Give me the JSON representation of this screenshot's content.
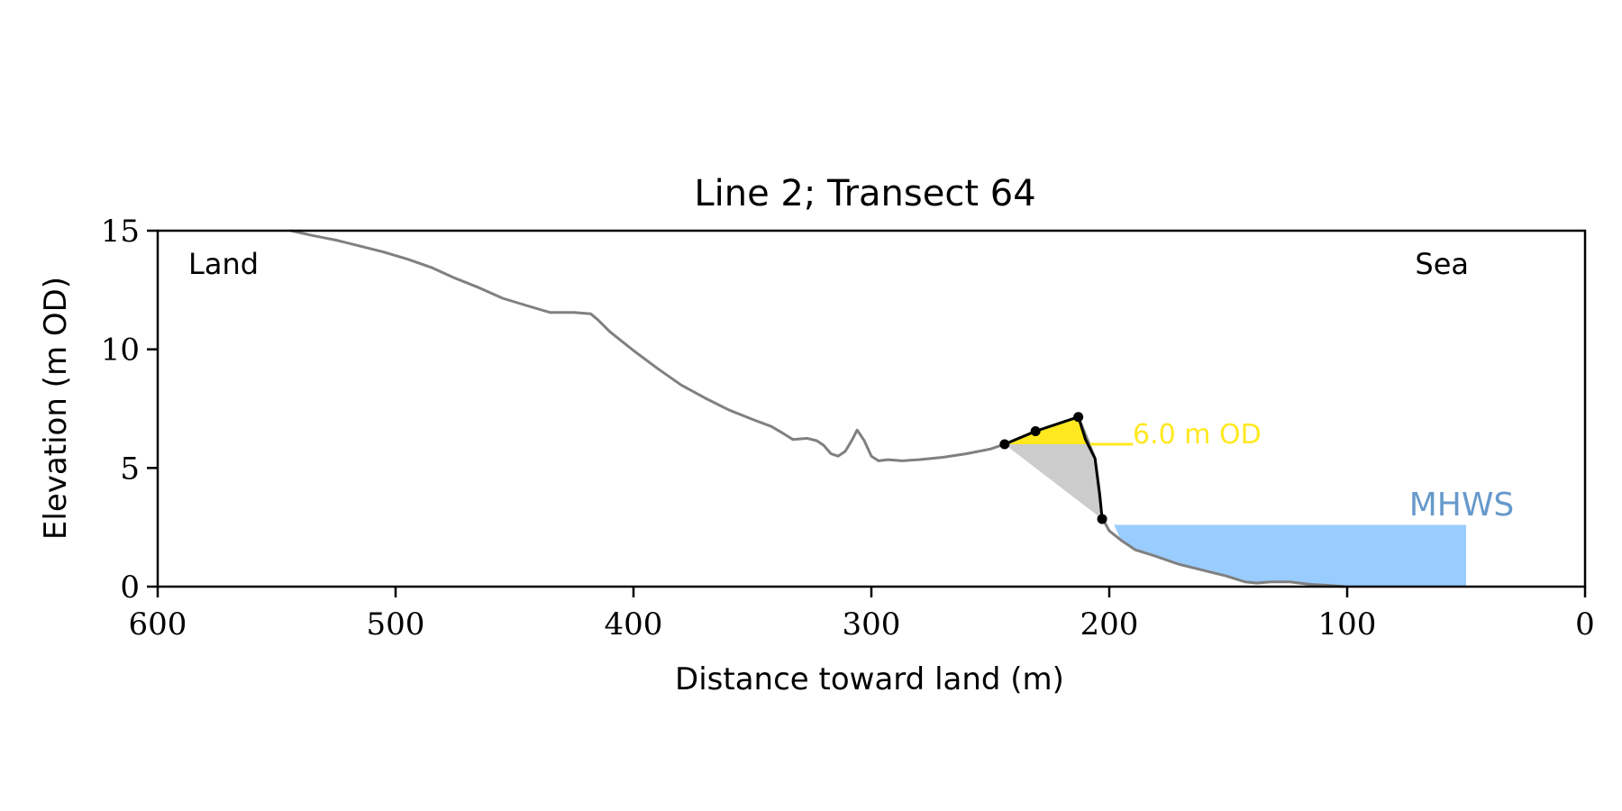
{
  "chart_data": {
    "type": "line",
    "title": "Line 2; Transect 64",
    "xlabel": "Distance toward land (m)",
    "ylabel": "Elevation (m OD)",
    "xlim": [
      600,
      0
    ],
    "ylim": [
      0,
      15
    ],
    "x_ticks": [
      600,
      500,
      400,
      300,
      200,
      100,
      0
    ],
    "y_ticks": [
      0,
      5,
      10,
      15
    ],
    "x_tick_labels": [
      "600",
      "500",
      "400",
      "300",
      "200",
      "100",
      "0"
    ],
    "y_tick_labels": [
      "0",
      "5",
      "10",
      "15"
    ],
    "grid": false,
    "annotations": {
      "land": "Land",
      "sea": "Sea",
      "mhws": "MHWS",
      "od_level": "6.0 m OD"
    },
    "colors": {
      "profile": "#808080",
      "highlight_line": "#000000",
      "yellow_fill": "#ffe81f",
      "grey_fill": "#cccccc",
      "mhws_fill": "#99ccff",
      "mhws_text": "#6699cc",
      "od_text": "#ffe81f"
    },
    "series": [
      {
        "type": "profile",
        "x": [
          544,
          535,
          525,
          515,
          505,
          495,
          485,
          475,
          465,
          455,
          445,
          435,
          432,
          425,
          418,
          415,
          410,
          400,
          390,
          380,
          370,
          360,
          350,
          342,
          337,
          333,
          327,
          323,
          320,
          317,
          314,
          311,
          308,
          306,
          303,
          300,
          297,
          293,
          287,
          280,
          270,
          260,
          250,
          244,
          231,
          213,
          206,
          203,
          200,
          195,
          189,
          181,
          171,
          161,
          151,
          143,
          138,
          132,
          124,
          116,
          107,
          101
        ],
        "y": [
          15.0,
          14.8,
          14.6,
          14.35,
          14.1,
          13.8,
          13.45,
          13.0,
          12.6,
          12.15,
          11.85,
          11.55,
          11.55,
          11.55,
          11.5,
          11.25,
          10.75,
          9.95,
          9.2,
          8.5,
          7.95,
          7.45,
          7.05,
          6.75,
          6.45,
          6.2,
          6.25,
          6.15,
          5.95,
          5.6,
          5.5,
          5.7,
          6.2,
          6.6,
          6.15,
          5.5,
          5.3,
          5.35,
          5.3,
          5.35,
          5.45,
          5.6,
          5.8,
          6.0,
          6.55,
          7.15,
          5.4,
          2.9,
          2.35,
          1.95,
          1.55,
          1.3,
          0.95,
          0.7,
          0.45,
          0.2,
          0.15,
          0.2,
          0.2,
          0.1,
          0.05,
          0.0
        ]
      },
      {
        "type": "highlight",
        "x": [
          244,
          231,
          213,
          210,
          206,
          204,
          203
        ],
        "y": [
          6.0,
          6.55,
          7.15,
          6.2,
          5.4,
          3.9,
          2.85
        ]
      },
      {
        "type": "markers",
        "x": [
          244,
          231,
          213,
          203
        ],
        "y": [
          6.0,
          6.55,
          7.15,
          2.85
        ]
      },
      {
        "type": "yellow_fill",
        "x": [
          244,
          231,
          213,
          210,
          208
        ],
        "y": [
          6.0,
          6.55,
          7.15,
          6.2,
          6.0
        ]
      },
      {
        "type": "grey_fill",
        "x": [
          244,
          208,
          206,
          204,
          203
        ],
        "y": [
          6.0,
          6.0,
          5.4,
          3.9,
          2.85
        ]
      },
      {
        "type": "mhws_fill",
        "x": [
          198,
          195,
          189,
          181,
          171,
          161,
          151,
          143,
          138,
          132,
          124,
          116,
          107,
          101,
          50,
          50
        ],
        "y": [
          2.6,
          1.95,
          1.55,
          1.3,
          0.95,
          0.7,
          0.45,
          0.2,
          0.15,
          0.2,
          0.2,
          0.1,
          0.05,
          0.0,
          0.0,
          2.6
        ]
      },
      {
        "type": "od_line",
        "x": [
          208,
          190
        ],
        "y": [
          6.0,
          6.0
        ]
      }
    ],
    "mhws_level": 2.6,
    "od_level_value": 6.0
  }
}
